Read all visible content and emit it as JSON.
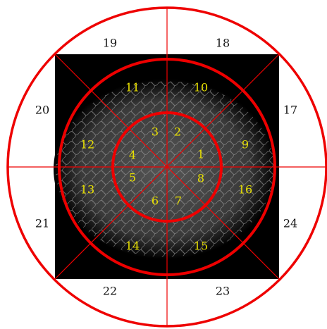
{
  "segments": [
    "1",
    "2",
    "3",
    "4",
    "5",
    "6",
    "7",
    "8",
    "9",
    "10",
    "11",
    "12",
    "13",
    "14",
    "15",
    "16",
    "17",
    "18",
    "19",
    "20",
    "21",
    "22",
    "23",
    "24"
  ]
}
